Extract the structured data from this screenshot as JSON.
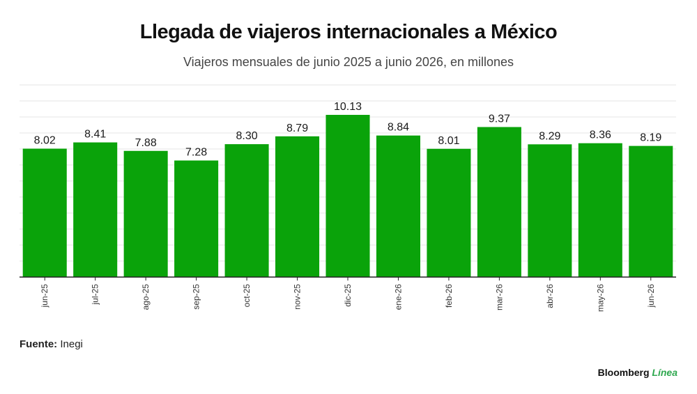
{
  "header": {
    "title": "Llegada de viajeros internacionales a México",
    "subtitle": "Viajeros mensuales de junio 2025 a junio 2026, en millones"
  },
  "footer": {
    "source_label": "Fuente:",
    "source_value": "Inegi",
    "brand_main": "Bloomberg",
    "brand_accent": "Línea"
  },
  "colors": {
    "bar": "#0aa30a",
    "grid": "#e6e6e6",
    "axis": "#222222"
  },
  "chart_data": {
    "type": "bar",
    "categories": [
      "jun-25",
      "jul-25",
      "ago-25",
      "sep-25",
      "oct-25",
      "nov-25",
      "dic-25",
      "ene-26",
      "feb-26",
      "mar-26",
      "abr-26",
      "may-26",
      "jun-26"
    ],
    "values": [
      8.02,
      8.41,
      7.88,
      7.28,
      8.3,
      8.79,
      10.13,
      8.84,
      8.01,
      9.37,
      8.29,
      8.36,
      8.19
    ],
    "value_labels": [
      "8.02",
      "8.41",
      "7.88",
      "7.28",
      "8.30",
      "8.79",
      "10.13",
      "8.84",
      "8.01",
      "9.37",
      "8.29",
      "8.36",
      "8.19"
    ],
    "ylim": [
      0,
      12
    ],
    "grid": true,
    "xlabel": "",
    "ylabel": ""
  }
}
